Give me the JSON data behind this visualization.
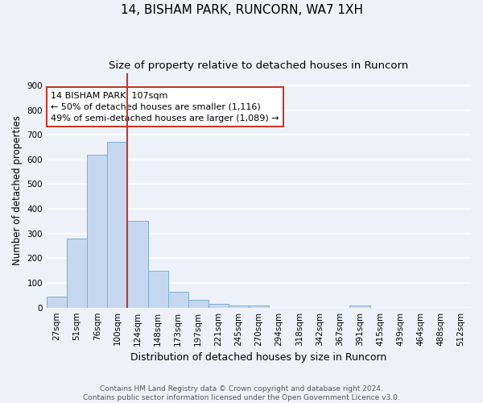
{
  "title": "14, BISHAM PARK, RUNCORN, WA7 1XH",
  "subtitle": "Size of property relative to detached houses in Runcorn",
  "xlabel": "Distribution of detached houses by size in Runcorn",
  "ylabel": "Number of detached properties",
  "categories": [
    "27sqm",
    "51sqm",
    "76sqm",
    "100sqm",
    "124sqm",
    "148sqm",
    "173sqm",
    "197sqm",
    "221sqm",
    "245sqm",
    "270sqm",
    "294sqm",
    "318sqm",
    "342sqm",
    "367sqm",
    "391sqm",
    "415sqm",
    "439sqm",
    "464sqm",
    "488sqm",
    "512sqm"
  ],
  "values": [
    45,
    280,
    620,
    670,
    350,
    148,
    65,
    33,
    15,
    10,
    10,
    0,
    0,
    0,
    0,
    10,
    0,
    0,
    0,
    0,
    0
  ],
  "bar_color": "#c5d8ef",
  "bar_edge_color": "#7aafd4",
  "vline_color": "#c0392b",
  "annotation_line1": "14 BISHAM PARK: 107sqm",
  "annotation_line2": "← 50% of detached houses are smaller (1,116)",
  "annotation_line3": "49% of semi-detached houses are larger (1,089) →",
  "annotation_box_color": "white",
  "annotation_box_edge_color": "#c0392b",
  "ylim": [
    0,
    950
  ],
  "yticks": [
    0,
    100,
    200,
    300,
    400,
    500,
    600,
    700,
    800,
    900
  ],
  "background_color": "#eef2f8",
  "grid_color": "white",
  "footer_line1": "Contains HM Land Registry data © Crown copyright and database right 2024.",
  "footer_line2": "Contains public sector information licensed under the Open Government Licence v3.0.",
  "title_fontsize": 11,
  "subtitle_fontsize": 9.5,
  "xlabel_fontsize": 9,
  "ylabel_fontsize": 8.5,
  "tick_fontsize": 7.5,
  "annotation_fontsize": 8,
  "footer_fontsize": 6.5
}
